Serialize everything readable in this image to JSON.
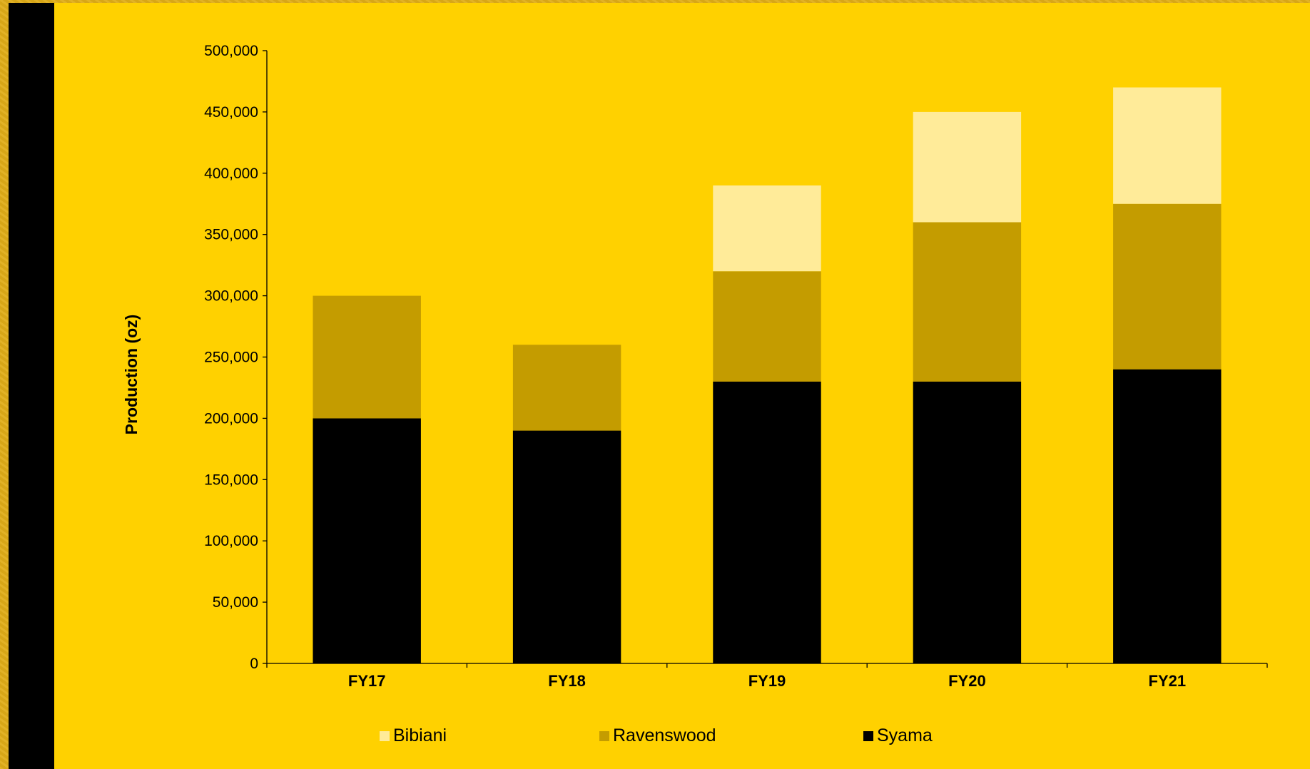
{
  "chart_data": {
    "type": "bar",
    "stacked": true,
    "categories": [
      "FY17",
      "FY18",
      "FY19",
      "FY20",
      "FY21"
    ],
    "series": [
      {
        "name": "Syama",
        "color": "#000000",
        "values": [
          200000,
          190000,
          230000,
          230000,
          240000
        ]
      },
      {
        "name": "Ravenswood",
        "color": "#c49c00",
        "values": [
          100000,
          70000,
          90000,
          130000,
          135000
        ]
      },
      {
        "name": "Bibiani",
        "color": "#ffeb99",
        "values": [
          0,
          0,
          70000,
          90000,
          95000
        ]
      }
    ],
    "ylabel": "Production (oz)",
    "xlabel": "",
    "ylim": [
      0,
      500000
    ],
    "yticks": [
      "0",
      "50,000",
      "100,000",
      "150,000",
      "200,000",
      "250,000",
      "300,000",
      "350,000",
      "400,000",
      "450,000",
      "500,000"
    ],
    "legend": {
      "placement": "bottom",
      "order": [
        "Bibiani",
        "Ravenswood",
        "Syama"
      ]
    },
    "grid": false
  }
}
